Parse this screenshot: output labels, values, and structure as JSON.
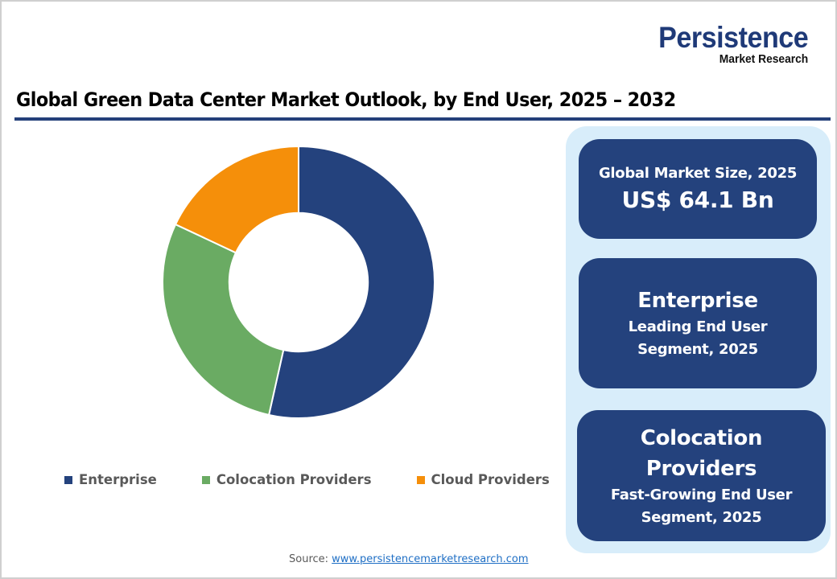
{
  "logo": {
    "main": "Persistence",
    "sub": "Market Research"
  },
  "title": "Global Green Data Center Market Outlook, by End User, 2025 – 2032",
  "chart_data": {
    "type": "pie",
    "subtype": "donut",
    "title": "Global Green Data Center Market Outlook, by End User, 2025 – 2032",
    "categories": [
      "Enterprise",
      "Colocation Providers",
      "Cloud Providers"
    ],
    "values": [
      53.5,
      28.5,
      18.0
    ],
    "unit": "%",
    "colors": [
      "#24427d",
      "#6aab63",
      "#f58f0a"
    ],
    "start_angle": "12 o'clock, clockwise",
    "legend_position": "bottom",
    "hole_ratio": 0.51
  },
  "legend": [
    {
      "label": "Enterprise",
      "color": "#24427d"
    },
    {
      "label": "Colocation Providers",
      "color": "#6aab63"
    },
    {
      "label": "Cloud Providers",
      "color": "#f58f0a"
    }
  ],
  "cards": {
    "market_size": {
      "label": "Global Market Size, 2025",
      "value": "US$ 64.1 Bn"
    },
    "leading": {
      "segment": "Enterprise",
      "line1": "Leading End User",
      "line2": "Segment, 2025"
    },
    "fastest": {
      "segment_line1": "Colocation",
      "segment_line2": "Providers",
      "line1": "Fast-Growing End User",
      "line2": "Segment, 2025"
    }
  },
  "source": {
    "label": "Source:",
    "link": "www.persistencemarketresearch.com"
  },
  "colors": {
    "brand_navy": "#24427d",
    "panel_bg": "#d8edfa",
    "title_rule": "#24407a"
  }
}
